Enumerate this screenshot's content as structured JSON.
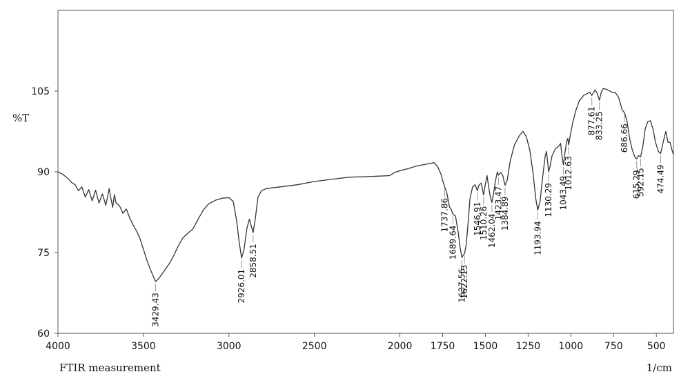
{
  "chart_data": {
    "type": "line",
    "title": "",
    "xlabel": "FTIR measurement",
    "x_unit": "1/cm",
    "ylabel": "%T",
    "xlim": [
      4000,
      400
    ],
    "ylim": [
      60,
      120
    ],
    "x_reversed": true,
    "grid": false,
    "x_ticks": [
      4000,
      3500,
      3000,
      2500,
      2000,
      1750,
      1500,
      1250,
      1000,
      750,
      500
    ],
    "y_ticks": [
      60,
      75,
      90,
      105
    ],
    "line_color": "#333333",
    "series": [
      {
        "points": [
          [
            4000,
            90.0
          ],
          [
            3970,
            89.5
          ],
          [
            3940,
            88.7
          ],
          [
            3920,
            88.0
          ],
          [
            3900,
            87.6
          ],
          [
            3880,
            86.5
          ],
          [
            3860,
            87.2
          ],
          [
            3840,
            85.3
          ],
          [
            3820,
            86.7
          ],
          [
            3800,
            84.6
          ],
          [
            3780,
            86.6
          ],
          [
            3760,
            84.2
          ],
          [
            3740,
            85.9
          ],
          [
            3720,
            83.8
          ],
          [
            3700,
            86.9
          ],
          [
            3690,
            85.0
          ],
          [
            3680,
            83.4
          ],
          [
            3670,
            85.8
          ],
          [
            3660,
            84.2
          ],
          [
            3640,
            83.7
          ],
          [
            3620,
            82.3
          ],
          [
            3600,
            83.1
          ],
          [
            3580,
            81.4
          ],
          [
            3560,
            80.1
          ],
          [
            3540,
            79.0
          ],
          [
            3520,
            77.6
          ],
          [
            3500,
            75.6
          ],
          [
            3480,
            73.6
          ],
          [
            3460,
            71.9
          ],
          [
            3445,
            70.8
          ],
          [
            3429.43,
            69.6
          ],
          [
            3410,
            70.2
          ],
          [
            3380,
            71.5
          ],
          [
            3350,
            72.9
          ],
          [
            3320,
            74.6
          ],
          [
            3300,
            76.0
          ],
          [
            3270,
            77.7
          ],
          [
            3240,
            78.6
          ],
          [
            3210,
            79.4
          ],
          [
            3180,
            81.2
          ],
          [
            3150,
            82.9
          ],
          [
            3120,
            84.0
          ],
          [
            3080,
            84.7
          ],
          [
            3040,
            85.1
          ],
          [
            3000,
            85.2
          ],
          [
            2975,
            84.5
          ],
          [
            2955,
            81.0
          ],
          [
            2940,
            77.0
          ],
          [
            2926.01,
            74.0
          ],
          [
            2912,
            75.5
          ],
          [
            2895,
            79.5
          ],
          [
            2880,
            81.2
          ],
          [
            2870,
            80.0
          ],
          [
            2858.51,
            78.7
          ],
          [
            2846,
            81.2
          ],
          [
            2830,
            85.3
          ],
          [
            2810,
            86.5
          ],
          [
            2780,
            86.9
          ],
          [
            2700,
            87.2
          ],
          [
            2600,
            87.6
          ],
          [
            2500,
            88.2
          ],
          [
            2400,
            88.6
          ],
          [
            2300,
            89.0
          ],
          [
            2200,
            89.1
          ],
          [
            2120,
            89.2
          ],
          [
            2060,
            89.3
          ],
          [
            2030,
            89.9
          ],
          [
            1990,
            90.3
          ],
          [
            1950,
            90.6
          ],
          [
            1900,
            91.1
          ],
          [
            1850,
            91.4
          ],
          [
            1800,
            91.7
          ],
          [
            1780,
            91.0
          ],
          [
            1760,
            89.6
          ],
          [
            1750,
            88.4
          ],
          [
            1737.86,
            87.2
          ],
          [
            1725,
            86.0
          ],
          [
            1710,
            83.5
          ],
          [
            1700,
            83.0
          ],
          [
            1689.64,
            82.1
          ],
          [
            1675,
            81.8
          ],
          [
            1660,
            79.0
          ],
          [
            1648,
            76.0
          ],
          [
            1637.56,
            74.1
          ],
          [
            1630,
            74.5
          ],
          [
            1622.13,
            74.8
          ],
          [
            1612,
            76.5
          ],
          [
            1600,
            81.0
          ],
          [
            1590,
            85.0
          ],
          [
            1575,
            87.2
          ],
          [
            1560,
            87.6
          ],
          [
            1546.91,
            86.5
          ],
          [
            1538,
            87.5
          ],
          [
            1525,
            87.9
          ],
          [
            1510.26,
            85.7
          ],
          [
            1500,
            87.7
          ],
          [
            1490,
            89.3
          ],
          [
            1480,
            87.0
          ],
          [
            1472,
            85.5
          ],
          [
            1462.04,
            84.3
          ],
          [
            1452,
            86.0
          ],
          [
            1440,
            88.5
          ],
          [
            1430,
            90.0
          ],
          [
            1423.47,
            89.4
          ],
          [
            1410,
            89.9
          ],
          [
            1398,
            89.3
          ],
          [
            1384.89,
            87.5
          ],
          [
            1372,
            88.5
          ],
          [
            1355,
            92.0
          ],
          [
            1330,
            95.0
          ],
          [
            1300,
            96.8
          ],
          [
            1280,
            97.5
          ],
          [
            1260,
            96.5
          ],
          [
            1240,
            94.0
          ],
          [
            1222,
            90.0
          ],
          [
            1205,
            85.0
          ],
          [
            1193.94,
            82.9
          ],
          [
            1180,
            84.5
          ],
          [
            1165,
            89.0
          ],
          [
            1150,
            93.0
          ],
          [
            1142,
            93.8
          ],
          [
            1135,
            91.5
          ],
          [
            1130.29,
            90.0
          ],
          [
            1122,
            91.0
          ],
          [
            1110,
            93.0
          ],
          [
            1090,
            94.3
          ],
          [
            1070,
            94.8
          ],
          [
            1060,
            95.3
          ],
          [
            1052,
            93.0
          ],
          [
            1043.49,
            91.3
          ],
          [
            1035,
            93.5
          ],
          [
            1025,
            95.5
          ],
          [
            1018,
            96.2
          ],
          [
            1012.63,
            95.0
          ],
          [
            1005,
            96.5
          ],
          [
            990,
            99.0
          ],
          [
            970,
            101.5
          ],
          [
            950,
            103.2
          ],
          [
            925,
            104.2
          ],
          [
            900,
            104.6
          ],
          [
            890,
            104.8
          ],
          [
            877.61,
            104.2
          ],
          [
            870,
            104.6
          ],
          [
            858,
            105.2
          ],
          [
            845,
            104.5
          ],
          [
            833.25,
            103.3
          ],
          [
            822,
            104.8
          ],
          [
            810,
            105.5
          ],
          [
            790,
            105.3
          ],
          [
            760,
            104.8
          ],
          [
            740,
            104.7
          ],
          [
            720,
            103.8
          ],
          [
            700,
            101.5
          ],
          [
            686.66,
            101.0
          ],
          [
            672,
            99.5
          ],
          [
            655,
            96.0
          ],
          [
            640,
            94.0
          ],
          [
            625,
            92.7
          ],
          [
            615.29,
            92.4
          ],
          [
            605,
            93.0
          ],
          [
            592.15,
            92.8
          ],
          [
            580,
            94.5
          ],
          [
            565,
            98.0
          ],
          [
            550,
            99.3
          ],
          [
            535,
            99.5
          ],
          [
            520,
            98.0
          ],
          [
            505,
            95.5
          ],
          [
            488,
            93.8
          ],
          [
            474.49,
            93.4
          ],
          [
            460,
            95.5
          ],
          [
            445,
            97.5
          ],
          [
            432,
            95.5
          ],
          [
            420,
            95.5
          ],
          [
            408,
            94.0
          ],
          [
            400,
            93.2
          ]
        ]
      }
    ],
    "peaks": [
      {
        "label": "3429.43",
        "x": 3429.43,
        "y": 69.6
      },
      {
        "label": "2926.01",
        "x": 2926.01,
        "y": 74.0
      },
      {
        "label": "2858.51",
        "x": 2858.51,
        "y": 78.7
      },
      {
        "label": "1737.86",
        "x": 1737.86,
        "y": 87.2
      },
      {
        "label": "1689.64",
        "x": 1689.64,
        "y": 82.1
      },
      {
        "label": "1637.56",
        "x": 1637.56,
        "y": 74.1
      },
      {
        "label": "1622.13",
        "x": 1622.13,
        "y": 74.8
      },
      {
        "label": "1546.91",
        "x": 1546.91,
        "y": 86.5
      },
      {
        "label": "1510.26",
        "x": 1510.26,
        "y": 85.7
      },
      {
        "label": "1462.04",
        "x": 1462.04,
        "y": 84.3
      },
      {
        "label": "1423.47",
        "x": 1423.47,
        "y": 89.4
      },
      {
        "label": "1384.89",
        "x": 1384.89,
        "y": 87.5
      },
      {
        "label": "1193.94",
        "x": 1193.94,
        "y": 82.9
      },
      {
        "label": "1130.29",
        "x": 1130.29,
        "y": 90.0
      },
      {
        "label": "1043.49",
        "x": 1043.49,
        "y": 91.3
      },
      {
        "label": "1012.63",
        "x": 1012.63,
        "y": 95.0
      },
      {
        "label": "877.61",
        "x": 877.61,
        "y": 104.2
      },
      {
        "label": "833.25",
        "x": 833.25,
        "y": 103.3
      },
      {
        "label": "686.66",
        "x": 686.66,
        "y": 101.0
      },
      {
        "label": "615.29",
        "x": 615.29,
        "y": 92.4
      },
      {
        "label": "592.15",
        "x": 592.15,
        "y": 92.8
      },
      {
        "label": "474.49",
        "x": 474.49,
        "y": 93.4
      }
    ]
  }
}
